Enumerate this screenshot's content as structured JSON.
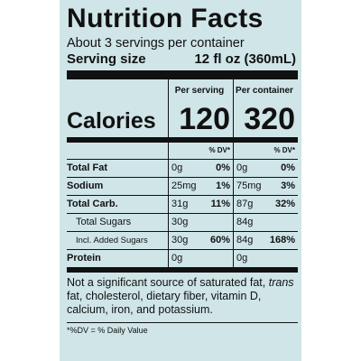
{
  "title": "Nutrition Facts",
  "servings_per_container": "About 3 servings per container",
  "serving_size_label": "Serving size",
  "serving_size_value": "12 fl oz (360mL)",
  "col_heads": {
    "per_serving": "Per serving",
    "per_container": "Per container"
  },
  "calories_label": "Calories",
  "calories_per_serving": "120",
  "calories_per_container": "320",
  "dv_head": "% DV*",
  "rows": [
    {
      "name": "Total Fat",
      "amt1": "0g",
      "dv1": "0%",
      "amt2": "0g",
      "dv2": "0%"
    },
    {
      "name": "Sodium",
      "amt1": "25mg",
      "dv1": "1%",
      "amt2": "75mg",
      "dv2": "3%"
    },
    {
      "name": "Total Carb.",
      "amt1": "31g",
      "dv1": "11%",
      "amt2": "87g",
      "dv2": "32%"
    },
    {
      "name": "Total Sugars",
      "amt1": "30g",
      "dv1": "",
      "amt2": "84g",
      "dv2": ""
    },
    {
      "name": "Incl. Added Sugars",
      "amt1": "30g",
      "dv1": "60%",
      "amt2": "84g",
      "dv2": "168%"
    },
    {
      "name": "Protein",
      "amt1": "0g",
      "dv1": "",
      "amt2": "0g",
      "dv2": ""
    }
  ],
  "footnote_part1": "Not a significant source of saturated fat, ",
  "footnote_trans": "trans",
  "footnote_part2": " fat, cholesterol, dietary fiber, vitamin D, calcium, iron, and potassium.",
  "dv_note": "*%DV = % Daily Value"
}
